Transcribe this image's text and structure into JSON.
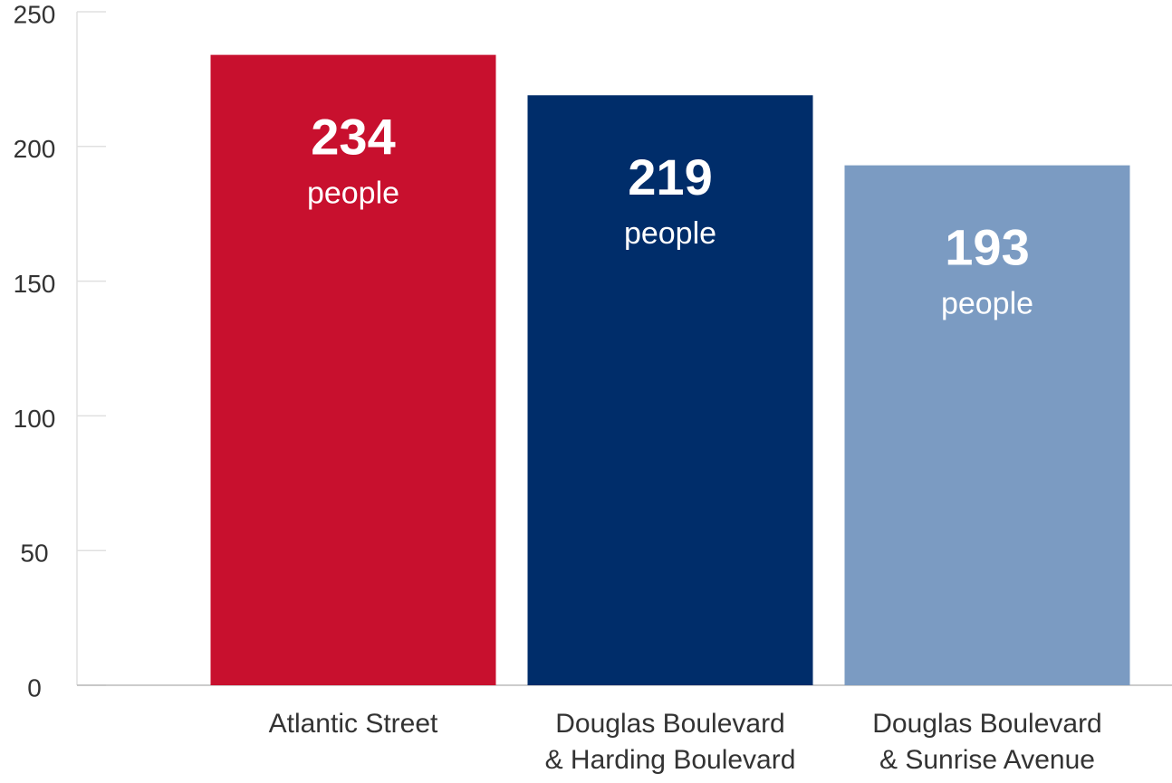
{
  "chart_data": {
    "type": "bar",
    "categories": [
      "Atlantic Street",
      "Douglas Boulevard\n& Harding Boulevard",
      "Douglas Boulevard\n& Sunrise Avenue"
    ],
    "values": [
      234,
      219,
      193
    ],
    "colors": [
      "#c8102e",
      "#002d6a",
      "#7b9bc2"
    ],
    "value_unit_label": "people",
    "ylim": [
      0,
      250
    ],
    "yticks": [
      0,
      50,
      100,
      150,
      200,
      250
    ],
    "grid": false
  }
}
